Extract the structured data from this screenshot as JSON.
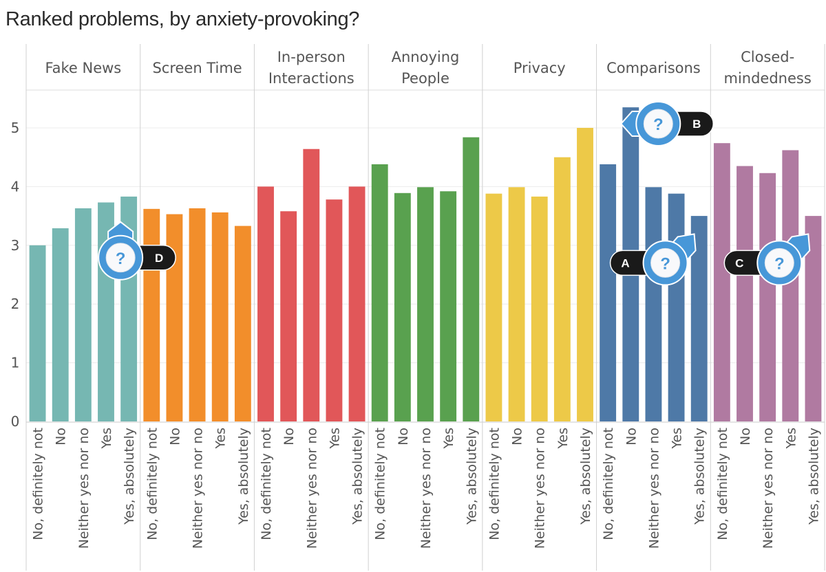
{
  "chart_data": {
    "type": "bar",
    "title": "Ranked problems, by anxiety-provoking?",
    "xlabel": "",
    "ylabel": "",
    "ylim": [
      0,
      5.6
    ],
    "yticks": [
      0,
      1,
      2,
      3,
      4,
      5
    ],
    "grid": true,
    "categories": [
      "No, definitely not",
      "No",
      "Neither yes nor no",
      "Yes",
      "Yes, absolutely"
    ],
    "facets": [
      {
        "name": "Fake News",
        "label_lines": [
          "Fake News"
        ],
        "color": "#76b7b2",
        "values": [
          3.0,
          3.29,
          3.63,
          3.73,
          3.83
        ]
      },
      {
        "name": "Screen Time",
        "label_lines": [
          "Screen Time"
        ],
        "color": "#f28e2b",
        "values": [
          3.62,
          3.53,
          3.63,
          3.56,
          3.33
        ]
      },
      {
        "name": "In-person Interactions",
        "label_lines": [
          "In-person",
          "Interactions"
        ],
        "color": "#e15759",
        "values": [
          4.0,
          3.58,
          4.64,
          3.78,
          4.0
        ]
      },
      {
        "name": "Annoying People",
        "label_lines": [
          "Annoying",
          "People"
        ],
        "color": "#59a14f",
        "values": [
          4.38,
          3.89,
          3.99,
          3.92,
          4.84
        ]
      },
      {
        "name": "Privacy",
        "label_lines": [
          "Privacy"
        ],
        "color": "#edc948",
        "values": [
          3.88,
          3.99,
          3.83,
          4.5,
          5.0
        ]
      },
      {
        "name": "Comparisons",
        "label_lines": [
          "Comparisons"
        ],
        "color": "#4e79a7",
        "values": [
          4.38,
          5.35,
          3.99,
          3.88,
          3.5
        ]
      },
      {
        "name": "Closed-mindedness",
        "label_lines": [
          "Closed-",
          "mindedness"
        ],
        "color": "#b07aa1",
        "values": [
          4.74,
          4.35,
          4.23,
          4.62,
          3.5
        ]
      }
    ]
  },
  "markers": [
    {
      "letter": "D",
      "icon": "question-icon",
      "facet": 0,
      "bar": 4,
      "value": 3.0,
      "pointer": "up",
      "label_side": "right"
    },
    {
      "letter": "B",
      "icon": "question-icon",
      "facet": 5,
      "bar": 1,
      "value": 5.0,
      "pointer": "left",
      "label_side": "right"
    },
    {
      "letter": "A",
      "icon": "question-icon",
      "facet": 5,
      "bar": 3,
      "value": 2.7,
      "pointer": "up-right",
      "label_side": "left"
    },
    {
      "letter": "C",
      "icon": "question-icon",
      "facet": 6,
      "bar": 3,
      "value": 2.7,
      "pointer": "up-right",
      "label_side": "left"
    }
  ],
  "marker_colors": {
    "ring": "#4797d8",
    "label_bg": "#1a1a1a",
    "face": "#f8f9fb"
  }
}
